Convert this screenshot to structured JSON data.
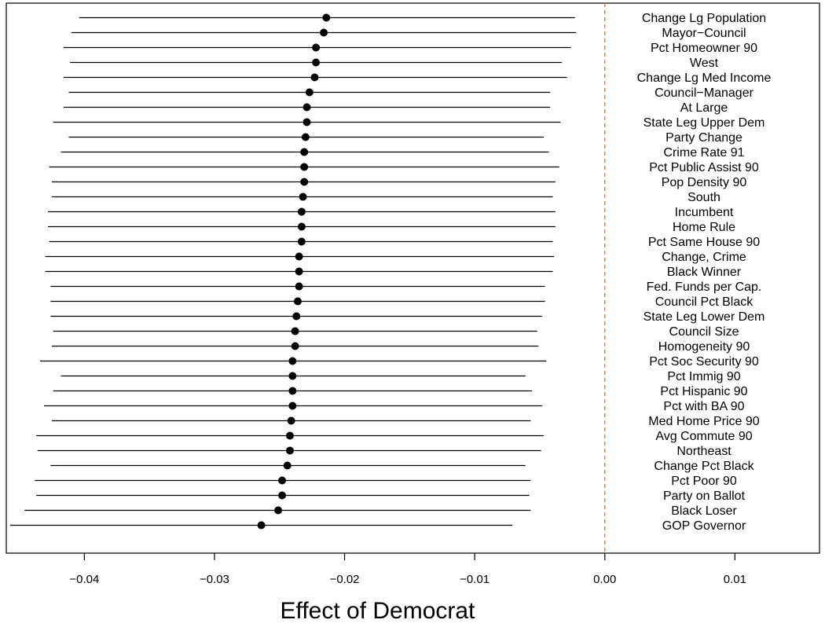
{
  "chart_data": {
    "type": "scatter",
    "subtype": "coefficient-interval",
    "xlabel": "Effect of Democrat",
    "xlim": [
      -0.046,
      0.0165
    ],
    "x_ticks": [
      -0.04,
      -0.03,
      -0.02,
      -0.01,
      0.0,
      0.01
    ],
    "x_tick_labels": [
      "−0.04",
      "−0.03",
      "−0.02",
      "−0.01",
      "0.00",
      "0.01"
    ],
    "reference_line": {
      "x": 0.0,
      "style": "dashed",
      "color": "#e8705f"
    },
    "grid": false,
    "legend": "none",
    "point_color": "#000000",
    "interval_color": "#000000",
    "series": [
      {
        "label": "Change Lg Population",
        "estimate": -0.0214,
        "lower": -0.0404,
        "upper": -0.0023
      },
      {
        "label": "Mayor−Council",
        "estimate": -0.0216,
        "lower": -0.041,
        "upper": -0.0022
      },
      {
        "label": "Pct Homeowner 90",
        "estimate": -0.0222,
        "lower": -0.0416,
        "upper": -0.0026
      },
      {
        "label": "West",
        "estimate": -0.0222,
        "lower": -0.0411,
        "upper": -0.0033
      },
      {
        "label": "Change Lg Med Income",
        "estimate": -0.0223,
        "lower": -0.0416,
        "upper": -0.0029
      },
      {
        "label": "Council−Manager",
        "estimate": -0.0227,
        "lower": -0.0412,
        "upper": -0.0042
      },
      {
        "label": "At Large",
        "estimate": -0.0229,
        "lower": -0.0416,
        "upper": -0.0042
      },
      {
        "label": "State Leg Upper Dem",
        "estimate": -0.0229,
        "lower": -0.0424,
        "upper": -0.0034
      },
      {
        "label": "Party Change",
        "estimate": -0.023,
        "lower": -0.0412,
        "upper": -0.0047
      },
      {
        "label": "Crime Rate 91",
        "estimate": -0.0231,
        "lower": -0.0418,
        "upper": -0.0043
      },
      {
        "label": "Pct Public Assist 90",
        "estimate": -0.0231,
        "lower": -0.0427,
        "upper": -0.0035
      },
      {
        "label": "Pop Density 90",
        "estimate": -0.0231,
        "lower": -0.0425,
        "upper": -0.0038
      },
      {
        "label": "South",
        "estimate": -0.0232,
        "lower": -0.0425,
        "upper": -0.004
      },
      {
        "label": "Incumbent",
        "estimate": -0.0233,
        "lower": -0.0428,
        "upper": -0.0038
      },
      {
        "label": "Home Rule",
        "estimate": -0.0233,
        "lower": -0.0428,
        "upper": -0.0038
      },
      {
        "label": "Pct Same House 90",
        "estimate": -0.0233,
        "lower": -0.0427,
        "upper": -0.004
      },
      {
        "label": "Change, Crime",
        "estimate": -0.0235,
        "lower": -0.043,
        "upper": -0.0039
      },
      {
        "label": "Black Winner",
        "estimate": -0.0235,
        "lower": -0.043,
        "upper": -0.004
      },
      {
        "label": "Fed. Funds per Cap.",
        "estimate": -0.0235,
        "lower": -0.0426,
        "upper": -0.0046
      },
      {
        "label": "Council Pct Black",
        "estimate": -0.0236,
        "lower": -0.0426,
        "upper": -0.0046
      },
      {
        "label": "State Leg Lower Dem",
        "estimate": -0.0237,
        "lower": -0.0426,
        "upper": -0.0048
      },
      {
        "label": "Council Size",
        "estimate": -0.0238,
        "lower": -0.0424,
        "upper": -0.0052
      },
      {
        "label": "Homogeneity 90",
        "estimate": -0.0238,
        "lower": -0.0425,
        "upper": -0.0051
      },
      {
        "label": "Pct Soc Security 90",
        "estimate": -0.024,
        "lower": -0.0434,
        "upper": -0.0045
      },
      {
        "label": "Pct Immig 90",
        "estimate": -0.024,
        "lower": -0.0418,
        "upper": -0.0061
      },
      {
        "label": "Pct Hispanic 90",
        "estimate": -0.024,
        "lower": -0.0424,
        "upper": -0.0056
      },
      {
        "label": "Pct with BA 90",
        "estimate": -0.024,
        "lower": -0.0431,
        "upper": -0.0048
      },
      {
        "label": "Med Home Price 90",
        "estimate": -0.0241,
        "lower": -0.0425,
        "upper": -0.0057
      },
      {
        "label": "Avg Commute 90",
        "estimate": -0.0242,
        "lower": -0.0437,
        "upper": -0.0047
      },
      {
        "label": "Northeast",
        "estimate": -0.0242,
        "lower": -0.0436,
        "upper": -0.0049
      },
      {
        "label": "Change Pct Black",
        "estimate": -0.0244,
        "lower": -0.0426,
        "upper": -0.0061
      },
      {
        "label": "Pct Poor 90",
        "estimate": -0.0248,
        "lower": -0.0438,
        "upper": -0.0057
      },
      {
        "label": "Party on Ballot",
        "estimate": -0.0248,
        "lower": -0.0437,
        "upper": -0.0058
      },
      {
        "label": "Black Loser",
        "estimate": -0.0251,
        "lower": -0.0446,
        "upper": -0.0057
      },
      {
        "label": "GOP Governor",
        "estimate": -0.0264,
        "lower": -0.0457,
        "upper": -0.0071
      }
    ]
  }
}
